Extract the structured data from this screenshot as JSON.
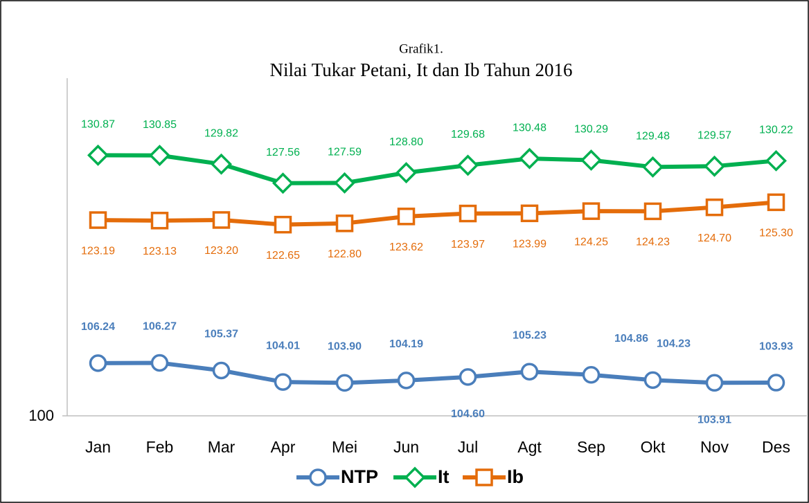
{
  "chart_data": {
    "type": "line",
    "subtitle": "Grafik1.",
    "title": "Nilai Tukar Petani, It dan Ib Tahun 2016",
    "categories": [
      "Jan",
      "Feb",
      "Mar",
      "Apr",
      "Mei",
      "Jun",
      "Jul",
      "Agt",
      "Sep",
      "Okt",
      "Nov",
      "Des"
    ],
    "ylim": [
      100,
      140
    ],
    "yticks": [
      100
    ],
    "series": [
      {
        "name": "NTP",
        "color": "#4a7ebb",
        "marker": "circle",
        "values": [
          106.24,
          106.27,
          105.37,
          104.01,
          103.9,
          104.19,
          104.6,
          105.23,
          104.86,
          104.23,
          103.91,
          103.93
        ],
        "value_labels": [
          "106.24",
          "106.27",
          "105.37",
          "104.01",
          "103.90",
          "104.19",
          "104.60",
          "105.23",
          "104.86",
          "104.23",
          "103.91",
          "103.93"
        ]
      },
      {
        "name": "It",
        "color": "#00b050",
        "marker": "diamond",
        "values": [
          130.87,
          130.85,
          129.82,
          127.56,
          127.59,
          128.8,
          129.68,
          130.48,
          130.29,
          129.48,
          129.57,
          130.22
        ],
        "value_labels": [
          "130.87",
          "130.85",
          "129.82",
          "127.56",
          "127.59",
          "128.80",
          "129.68",
          "130.48",
          "130.29",
          "129.48",
          "129.57",
          "130.22"
        ]
      },
      {
        "name": "Ib",
        "color": "#e46c0a",
        "marker": "square",
        "values": [
          123.19,
          123.13,
          123.2,
          122.65,
          122.8,
          123.62,
          123.97,
          123.99,
          124.25,
          124.23,
          124.7,
          125.3
        ],
        "value_labels": [
          "123.19",
          "123.13",
          "123.20",
          "122.65",
          "122.80",
          "123.62",
          "123.97",
          "123.99",
          "124.25",
          "124.23",
          "124.70",
          "125.30"
        ]
      }
    ]
  }
}
